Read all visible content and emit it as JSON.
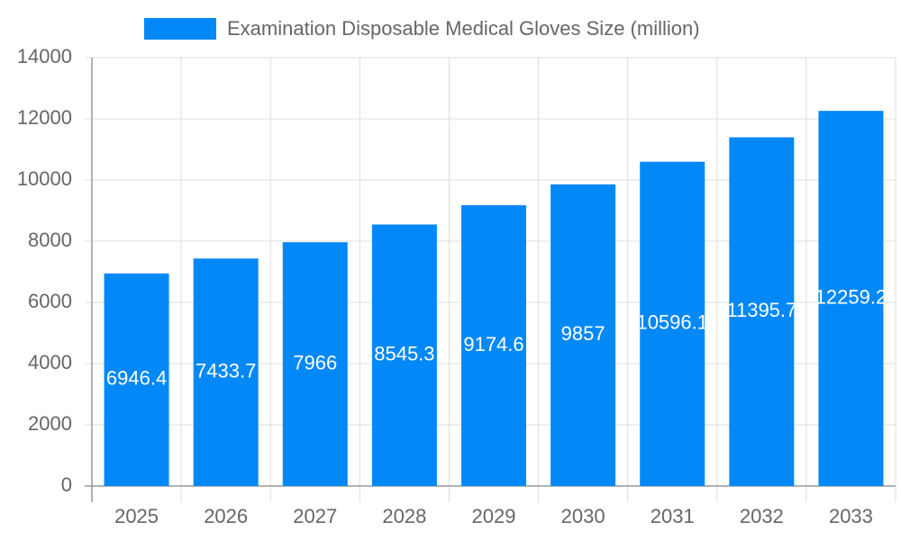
{
  "chart_data": {
    "type": "bar",
    "categories": [
      "2025",
      "2026",
      "2027",
      "2028",
      "2029",
      "2030",
      "2031",
      "2032",
      "2033"
    ],
    "series": [
      {
        "name": "Examination Disposable Medical Gloves Size (million)",
        "color": "#0388f7",
        "values": [
          6946.4,
          7433.7,
          7966,
          8545.3,
          9174.6,
          9857,
          10596.1,
          11395.7,
          12259.2
        ]
      }
    ],
    "ylim": [
      0,
      14000
    ],
    "yticks": [
      0,
      2000,
      4000,
      6000,
      8000,
      10000,
      12000,
      14000
    ],
    "grid": true,
    "legend": "top"
  }
}
